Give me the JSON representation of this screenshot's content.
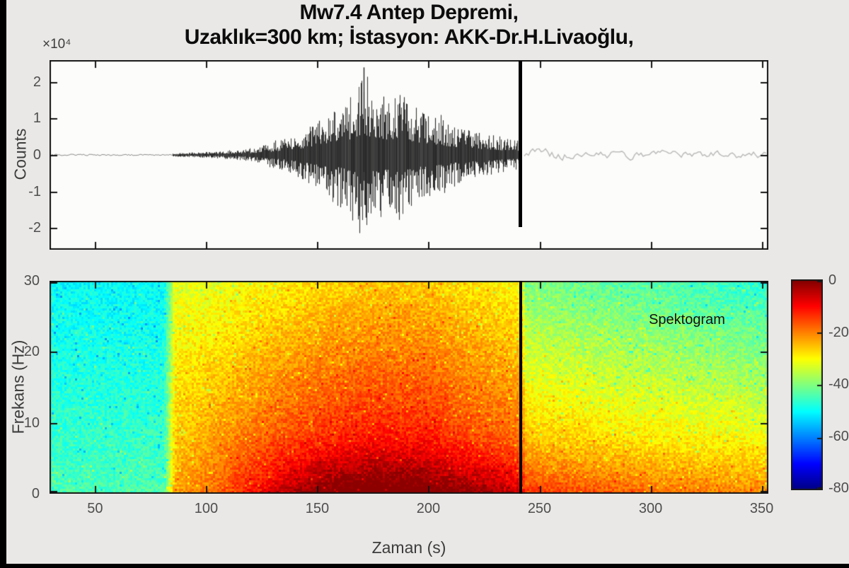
{
  "figure": {
    "title_line1": "Mw7.4 Antep Depremi,",
    "title_line2": "Uzaklık=300 km; İstasyon: AKK-Dr.H.Livaoğlu,",
    "background_color": "#e9e8e6",
    "axis_color": "#141414",
    "tick_label_color": "#4e4e4e"
  },
  "chart_data": [
    {
      "type": "line",
      "name": "seismogram",
      "ylabel": "Counts",
      "y_scale_label": "×10⁴",
      "y_ticks": [
        2,
        1,
        0,
        -1,
        -2
      ],
      "ylim": [
        -2.6,
        2.6
      ],
      "x_ticks": [
        50,
        100,
        150,
        200,
        250,
        300,
        350
      ],
      "xlim": [
        29.5,
        353
      ],
      "grid": false,
      "event_onset_s": 85,
      "marker_line_time_s": 242,
      "peak_amplitude_counts": 24000,
      "peak_time_s": 171,
      "signal_color": "#262626",
      "pre_event_color": "#8d8d8d",
      "post_marker_color": "#bcbcbc",
      "marker_color": "#000000",
      "envelope_counts_1e4": [
        [
          29.5,
          0.012
        ],
        [
          80,
          0.014
        ],
        [
          85,
          0.045
        ],
        [
          96,
          0.06
        ],
        [
          108,
          0.09
        ],
        [
          118,
          0.14
        ],
        [
          128,
          0.26
        ],
        [
          136,
          0.42
        ],
        [
          144,
          0.62
        ],
        [
          152,
          0.85
        ],
        [
          160,
          1.15
        ],
        [
          166,
          1.45
        ],
        [
          171,
          1.9
        ],
        [
          175,
          1.45
        ],
        [
          181,
          1.3
        ],
        [
          188,
          1.45
        ],
        [
          195,
          1.1
        ],
        [
          203,
          0.95
        ],
        [
          212,
          0.7
        ],
        [
          222,
          0.55
        ],
        [
          232,
          0.42
        ],
        [
          242,
          0.33
        ]
      ],
      "post_envelope_counts_1e4": [
        [
          242.5,
          0.16
        ],
        [
          260,
          0.13
        ],
        [
          300,
          0.11
        ],
        [
          353,
          0.11
        ]
      ]
    },
    {
      "type": "heatmap",
      "name": "spectrogram",
      "annotation": "Spektogram",
      "ylabel": "Frekans (Hz)",
      "xlabel": "Zaman (s)",
      "y_ticks": [
        30,
        20,
        10,
        0
      ],
      "ylim": [
        0,
        30
      ],
      "x_ticks": [
        50,
        100,
        150,
        200,
        250,
        300,
        350
      ],
      "xlim": [
        29.5,
        353
      ],
      "marker_line_time_s": 242,
      "marker_color": "#000000",
      "colorbar": {
        "colormap": "jet",
        "range_db": [
          -80,
          0
        ],
        "ticks": [
          0,
          -20,
          -40,
          -60,
          -80
        ]
      },
      "power_model_db": {
        "comment_levels": "rows: [time_s, level_dB_at_0Hz, level_dB_at_30Hz]",
        "levels": [
          [
            29.5,
            -44,
            -50
          ],
          [
            81,
            -44,
            -50
          ],
          [
            86,
            -23,
            -32
          ],
          [
            100,
            -19,
            -32
          ],
          [
            115,
            -15,
            -31
          ],
          [
            135,
            -10,
            -29
          ],
          [
            155,
            -7,
            -27
          ],
          [
            175,
            -5,
            -26
          ],
          [
            200,
            -6,
            -26
          ],
          [
            220,
            -10,
            -28
          ],
          [
            242,
            -13,
            -30
          ],
          [
            244,
            -19,
            -40
          ],
          [
            270,
            -20,
            -42
          ],
          [
            310,
            -22,
            -44
          ],
          [
            353,
            -23,
            -47
          ]
        ],
        "low_freq_boost_db": [
          [
            29.5,
            0
          ],
          [
            105,
            0
          ],
          [
            140,
            6
          ],
          [
            155,
            9
          ],
          [
            230,
            9
          ],
          [
            242,
            5
          ],
          [
            300,
            3.5
          ],
          [
            353,
            2.5
          ]
        ],
        "boost_cutoff_hz": 9,
        "noise_db": 3.5
      }
    }
  ]
}
